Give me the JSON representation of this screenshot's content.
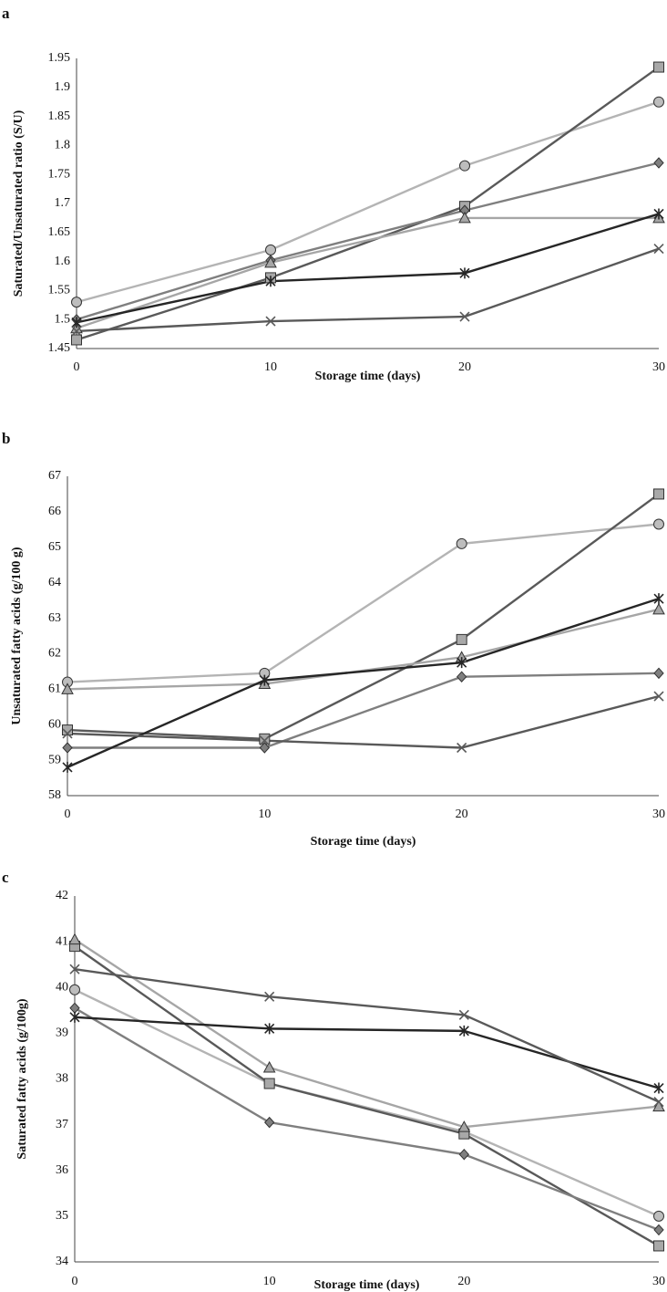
{
  "chart_data": [
    {
      "type": "line",
      "panel": "a",
      "xlabel": "Storage time (days)",
      "ylabel": "Saturated/Unsaturated ratio (S/U)",
      "x": [
        0,
        10,
        20,
        30
      ],
      "xticks": [
        "0",
        "10",
        "20",
        "30"
      ],
      "ylim": [
        1.45,
        1.95
      ],
      "yticks": [
        "1.45",
        "1.5",
        "1.55",
        "1.6",
        "1.65",
        "1.7",
        "1.75",
        "1.8",
        "1.85",
        "1.9",
        "1.95"
      ],
      "grid": false,
      "series": [
        {
          "marker": "circle",
          "color": "#b4b4b4",
          "values": [
            1.53,
            1.62,
            1.765,
            1.875
          ]
        },
        {
          "marker": "square",
          "color": "#595959",
          "values": [
            1.465,
            1.572,
            1.695,
            1.935
          ]
        },
        {
          "marker": "diamond",
          "color": "#7f7f7f",
          "values": [
            1.5,
            1.602,
            1.688,
            1.77
          ]
        },
        {
          "marker": "triangle",
          "color": "#a6a6a6",
          "values": [
            1.485,
            1.598,
            1.675,
            1.675
          ]
        },
        {
          "marker": "star",
          "color": "#262626",
          "values": [
            1.495,
            1.566,
            1.58,
            1.682
          ]
        },
        {
          "marker": "x",
          "color": "#595959",
          "values": [
            1.48,
            1.497,
            1.505,
            1.622
          ]
        }
      ]
    },
    {
      "type": "line",
      "panel": "b",
      "xlabel": "Storage time (days)",
      "ylabel": "Unsaturated fatty acids (g/100 g)",
      "x": [
        0,
        10,
        20,
        30
      ],
      "xticks": [
        "0",
        "10",
        "20",
        "30"
      ],
      "ylim": [
        58,
        67
      ],
      "yticks": [
        "58",
        "59",
        "60",
        "61",
        "62",
        "63",
        "64",
        "65",
        "66",
        "67"
      ],
      "grid": false,
      "series": [
        {
          "marker": "circle",
          "color": "#b4b4b4",
          "values": [
            61.2,
            61.45,
            65.1,
            65.65
          ]
        },
        {
          "marker": "square",
          "color": "#595959",
          "values": [
            59.85,
            59.6,
            62.4,
            66.5
          ]
        },
        {
          "marker": "diamond",
          "color": "#7f7f7f",
          "values": [
            59.35,
            59.35,
            61.35,
            61.45
          ]
        },
        {
          "marker": "triangle",
          "color": "#a6a6a6",
          "values": [
            61.0,
            61.15,
            61.9,
            63.25
          ]
        },
        {
          "marker": "star",
          "color": "#262626",
          "values": [
            58.8,
            61.25,
            61.75,
            63.55
          ]
        },
        {
          "marker": "x",
          "color": "#595959",
          "values": [
            59.75,
            59.55,
            59.35,
            60.8
          ]
        }
      ]
    },
    {
      "type": "line",
      "panel": "c",
      "xlabel": "Storage time (days)",
      "ylabel": "Saturated fatty acids (g/100g)",
      "x": [
        0,
        10,
        20,
        30
      ],
      "xticks": [
        "0",
        "10",
        "20",
        "30"
      ],
      "ylim": [
        34,
        42
      ],
      "yticks": [
        "34",
        "35",
        "36",
        "37",
        "38",
        "39",
        "40",
        "41",
        "42"
      ],
      "grid": false,
      "series": [
        {
          "marker": "circle",
          "color": "#b4b4b4",
          "values": [
            39.95,
            37.9,
            36.85,
            35.0
          ]
        },
        {
          "marker": "square",
          "color": "#595959",
          "values": [
            40.9,
            37.9,
            36.8,
            34.35
          ]
        },
        {
          "marker": "diamond",
          "color": "#7f7f7f",
          "values": [
            39.55,
            37.05,
            36.35,
            34.7
          ]
        },
        {
          "marker": "triangle",
          "color": "#a6a6a6",
          "values": [
            41.05,
            38.25,
            36.95,
            37.4
          ]
        },
        {
          "marker": "star",
          "color": "#262626",
          "values": [
            39.35,
            39.1,
            39.05,
            37.8
          ]
        },
        {
          "marker": "x",
          "color": "#595959",
          "values": [
            40.4,
            39.8,
            39.4,
            37.5
          ]
        }
      ]
    }
  ]
}
